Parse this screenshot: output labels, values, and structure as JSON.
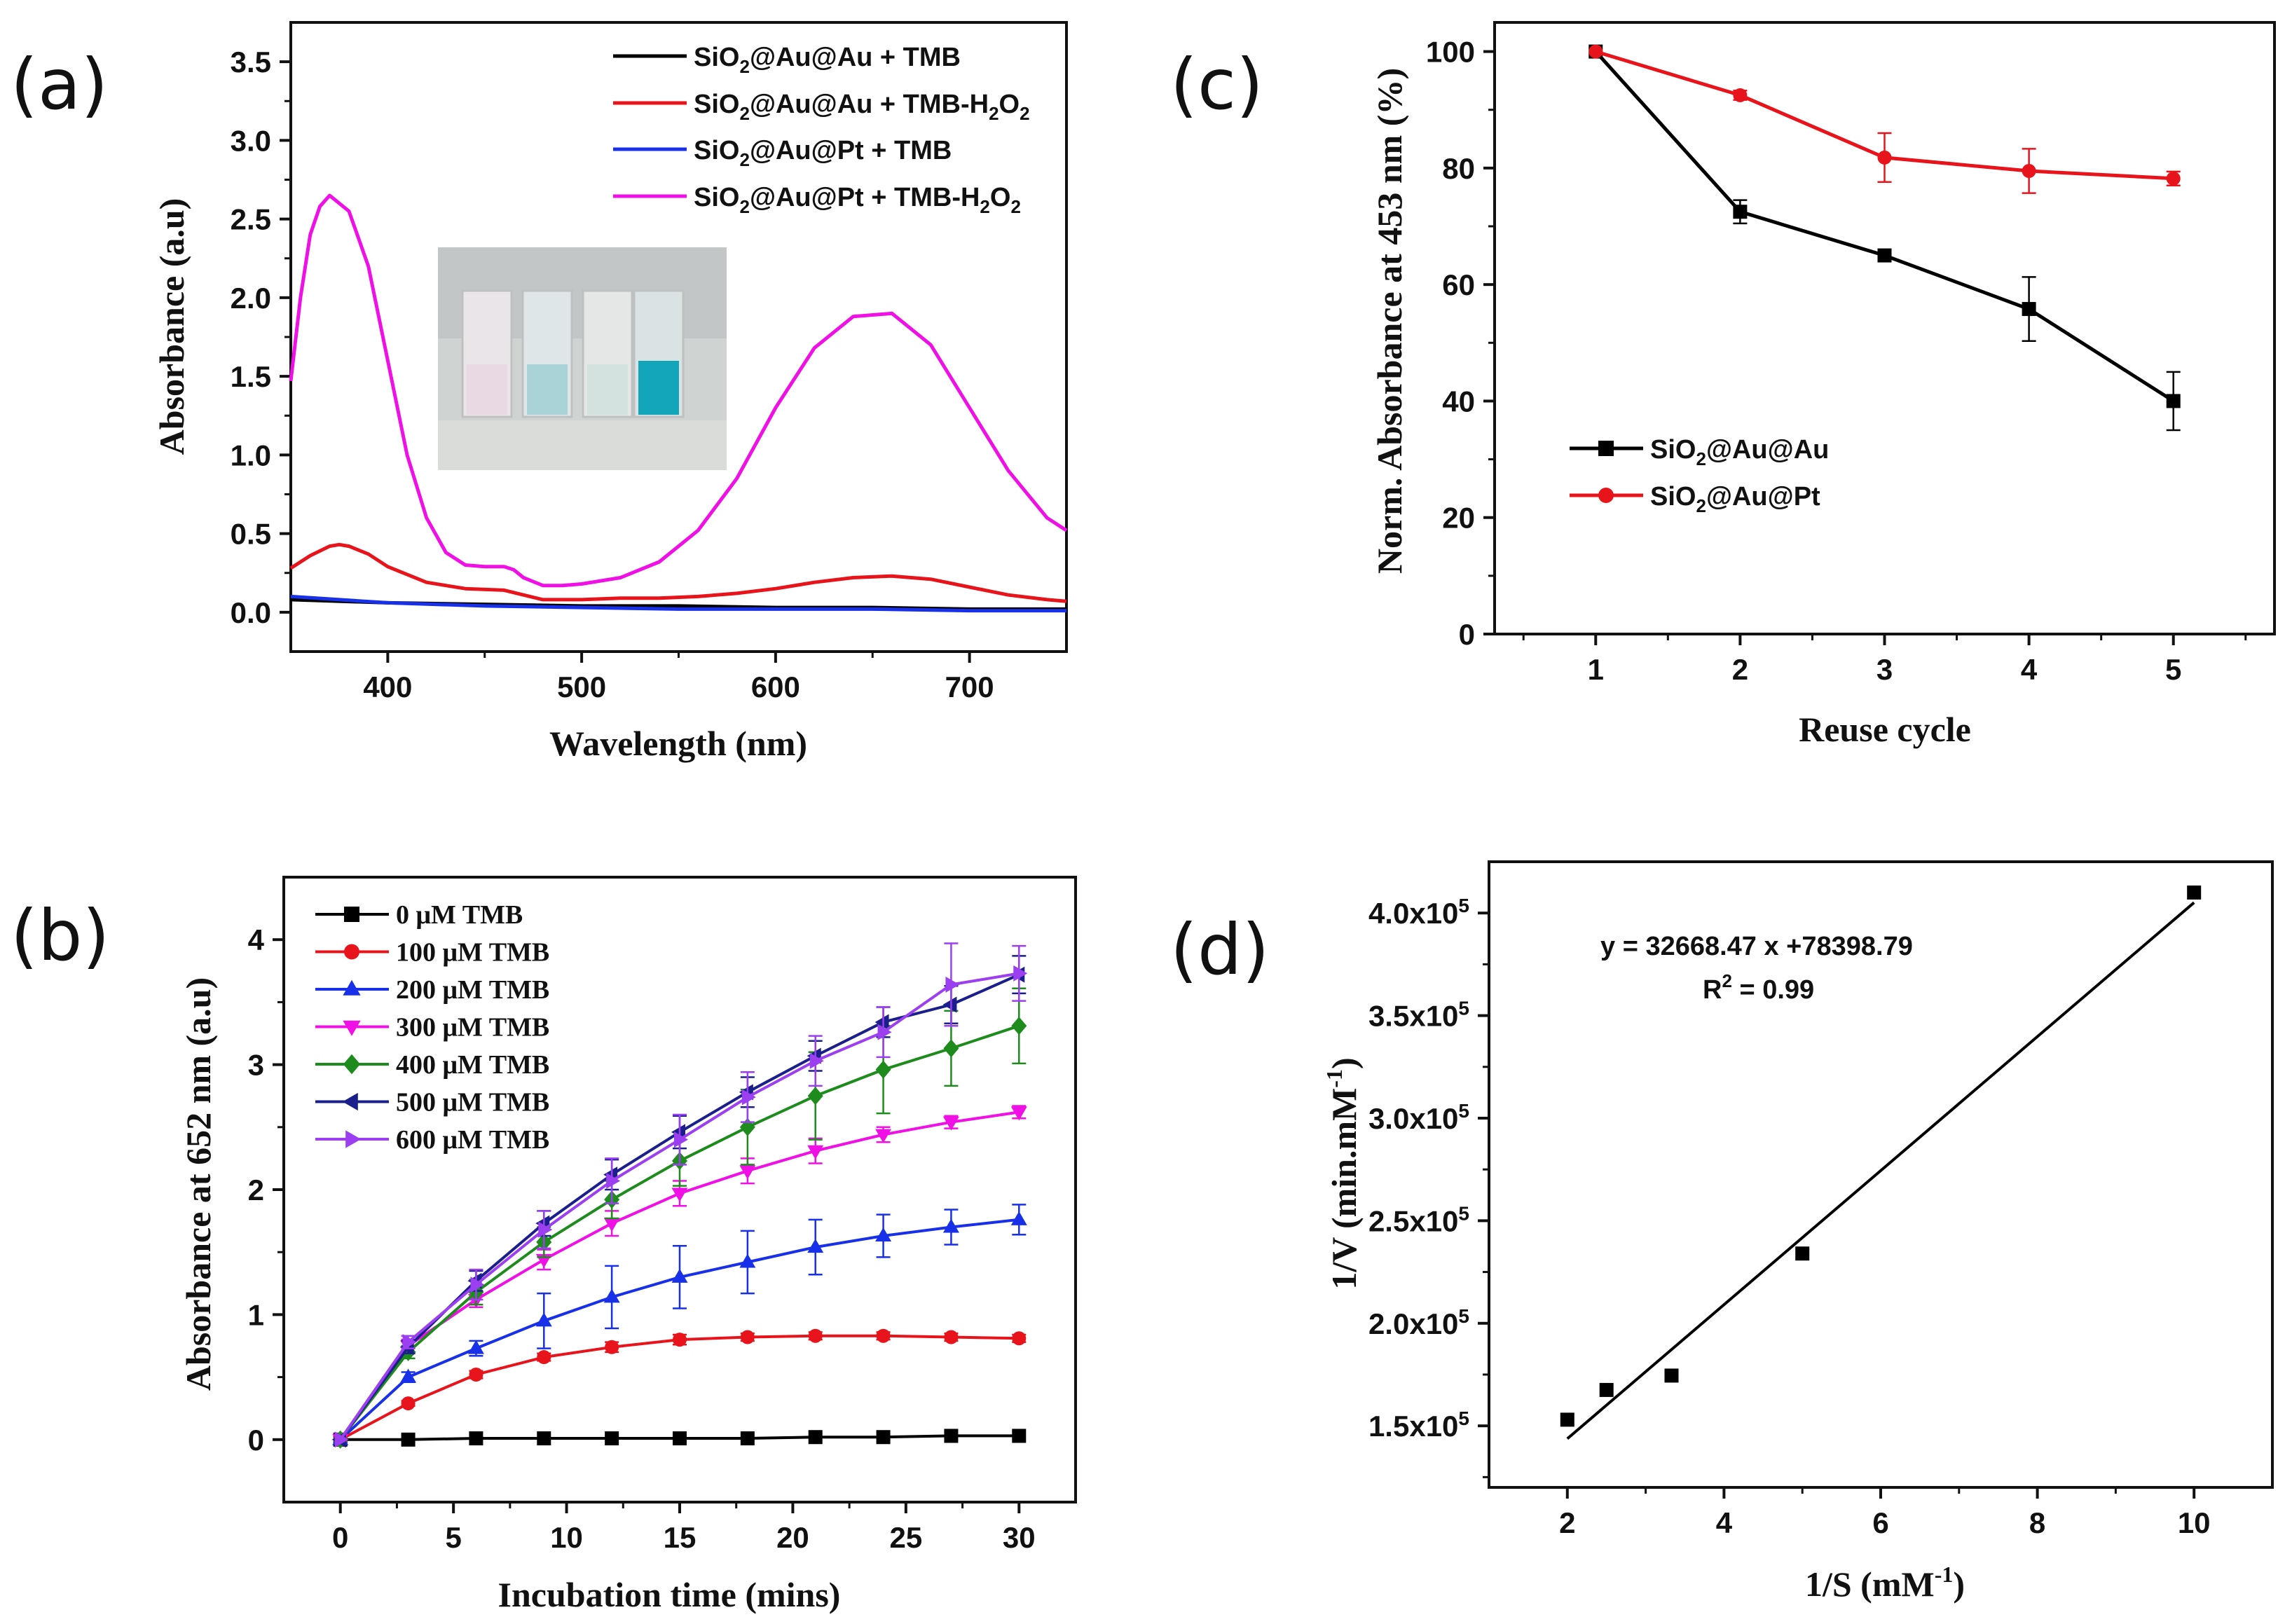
{
  "panels": {
    "a": "(a)",
    "b": "(b)",
    "c": "(c)",
    "d": "(d)"
  },
  "chart_data": [
    {
      "id": "a",
      "type": "line",
      "xlabel": "Wavelength (nm)",
      "ylabel": "Absorbance (a.u)",
      "xlim": [
        350,
        750
      ],
      "ylim": [
        -0.25,
        3.75
      ],
      "xticks": [
        400,
        500,
        600,
        700
      ],
      "yticks": [
        0.0,
        0.5,
        1.0,
        1.5,
        2.0,
        2.5,
        3.0,
        3.5
      ],
      "legend_position": "top-right",
      "inset": "photo of four cuvettes; the fourth is blue",
      "series": [
        {
          "name": "SiO2@Au@Au + TMB",
          "color": "#000000",
          "x": [
            350,
            400,
            450,
            500,
            550,
            600,
            650,
            700,
            750
          ],
          "y": [
            0.08,
            0.06,
            0.05,
            0.04,
            0.04,
            0.03,
            0.03,
            0.02,
            0.02
          ]
        },
        {
          "name": "SiO2@Au@Au + TMB-H2O2",
          "color": "#e8141b",
          "x": [
            350,
            360,
            370,
            375,
            380,
            390,
            400,
            420,
            440,
            460,
            470,
            480,
            500,
            520,
            540,
            560,
            580,
            600,
            620,
            640,
            660,
            680,
            700,
            720,
            740,
            750
          ],
          "y": [
            0.28,
            0.36,
            0.42,
            0.43,
            0.42,
            0.37,
            0.29,
            0.19,
            0.15,
            0.14,
            0.11,
            0.08,
            0.08,
            0.09,
            0.09,
            0.1,
            0.12,
            0.15,
            0.19,
            0.22,
            0.23,
            0.21,
            0.16,
            0.11,
            0.08,
            0.07
          ]
        },
        {
          "name": "SiO2@Au@Pt + TMB",
          "color": "#1730e8",
          "x": [
            350,
            400,
            450,
            500,
            550,
            600,
            650,
            700,
            750
          ],
          "y": [
            0.1,
            0.06,
            0.04,
            0.03,
            0.02,
            0.02,
            0.02,
            0.01,
            0.01
          ]
        },
        {
          "name": "SiO2@Au@Pt + TMB-H2O2",
          "color": "#f010e6",
          "x": [
            350,
            355,
            360,
            365,
            370,
            375,
            380,
            390,
            400,
            410,
            420,
            430,
            440,
            450,
            460,
            465,
            470,
            480,
            490,
            500,
            520,
            540,
            560,
            580,
            600,
            620,
            640,
            660,
            680,
            700,
            720,
            740,
            750
          ],
          "y": [
            1.47,
            2.0,
            2.4,
            2.58,
            2.65,
            2.6,
            2.55,
            2.2,
            1.6,
            1.0,
            0.6,
            0.38,
            0.3,
            0.29,
            0.29,
            0.27,
            0.22,
            0.17,
            0.17,
            0.18,
            0.22,
            0.32,
            0.52,
            0.85,
            1.3,
            1.68,
            1.88,
            1.9,
            1.7,
            1.3,
            0.9,
            0.6,
            0.52
          ]
        }
      ]
    },
    {
      "id": "b",
      "type": "line",
      "xlabel": "Incubation time (mins)",
      "ylabel": "Absorbance at 652 nm (a.u)",
      "xlim": [
        -2.5,
        32.5
      ],
      "ylim": [
        -0.5,
        4.5
      ],
      "xticks": [
        0,
        5,
        10,
        15,
        20,
        25,
        30
      ],
      "yticks": [
        0,
        1,
        2,
        3,
        4
      ],
      "legend_position": "top-left",
      "x": [
        0,
        3,
        6,
        9,
        12,
        15,
        18,
        21,
        24,
        27,
        30
      ],
      "series": [
        {
          "name": "0 μM TMB",
          "color": "#000000",
          "marker": "square",
          "values": [
            0,
            0,
            0.01,
            0.01,
            0.01,
            0.01,
            0.01,
            0.02,
            0.02,
            0.03,
            0.03
          ],
          "errors": [
            0,
            0,
            0,
            0,
            0,
            0,
            0,
            0,
            0,
            0,
            0
          ]
        },
        {
          "name": "100 μM TMB",
          "color": "#e8141b",
          "marker": "circle",
          "values": [
            0,
            0.29,
            0.52,
            0.66,
            0.74,
            0.8,
            0.82,
            0.83,
            0.83,
            0.82,
            0.81
          ],
          "errors": [
            0,
            0.02,
            0.03,
            0.03,
            0.04,
            0.04,
            0.03,
            0.03,
            0.03,
            0.03,
            0.03
          ]
        },
        {
          "name": "200 μM TMB",
          "color": "#1730e8",
          "marker": "triangle-up",
          "values": [
            0,
            0.5,
            0.73,
            0.95,
            1.14,
            1.3,
            1.42,
            1.54,
            1.63,
            1.7,
            1.76
          ],
          "errors": [
            0,
            0.04,
            0.06,
            0.22,
            0.25,
            0.25,
            0.25,
            0.22,
            0.17,
            0.14,
            0.12
          ]
        },
        {
          "name": "300 μM TMB",
          "color": "#f010e6",
          "marker": "triangle-down",
          "values": [
            0,
            0.75,
            1.12,
            1.44,
            1.73,
            1.97,
            2.15,
            2.31,
            2.44,
            2.54,
            2.62
          ],
          "errors": [
            0,
            0.05,
            0.06,
            0.08,
            0.1,
            0.1,
            0.1,
            0.1,
            0.06,
            0.05,
            0.05
          ]
        },
        {
          "name": "400 μM TMB",
          "color": "#1d8c1d",
          "marker": "diamond",
          "values": [
            0,
            0.7,
            1.18,
            1.58,
            1.92,
            2.23,
            2.5,
            2.75,
            2.96,
            3.13,
            3.31
          ],
          "errors": [
            0,
            0.05,
            0.1,
            0.12,
            0.15,
            0.2,
            0.3,
            0.35,
            0.35,
            0.3,
            0.3
          ]
        },
        {
          "name": "500 μM TMB",
          "color": "#1b1f8c",
          "marker": "triangle-left",
          "values": [
            0,
            0.74,
            1.27,
            1.73,
            2.12,
            2.46,
            2.78,
            3.07,
            3.34,
            3.48,
            3.72
          ],
          "errors": [
            0,
            0.05,
            0.08,
            0.1,
            0.12,
            0.13,
            0.12,
            0.12,
            0.12,
            0.15,
            0.15
          ]
        },
        {
          "name": "600 μM TMB",
          "color": "#9b3ff0",
          "marker": "triangle-right",
          "values": [
            0,
            0.78,
            1.24,
            1.68,
            2.07,
            2.4,
            2.74,
            3.03,
            3.26,
            3.64,
            3.73
          ],
          "errors": [
            0,
            0.05,
            0.12,
            0.15,
            0.18,
            0.2,
            0.2,
            0.2,
            0.2,
            0.33,
            0.22
          ]
        }
      ]
    },
    {
      "id": "c",
      "type": "line",
      "xlabel": "Reuse cycle",
      "ylabel": "Norm. Absorbance at 453 nm (%)",
      "xlim": [
        0.3,
        5.7
      ],
      "ylim": [
        0,
        105
      ],
      "xticks": [
        1,
        2,
        3,
        4,
        5
      ],
      "yticks": [
        0,
        20,
        40,
        60,
        80,
        100
      ],
      "legend_position": "bottom-left",
      "x": [
        1,
        2,
        3,
        4,
        5
      ],
      "series": [
        {
          "name": "SiO2@Au@Au",
          "color": "#000000",
          "marker": "square",
          "values": [
            100,
            72.5,
            65,
            55.8,
            40
          ],
          "errors": [
            0,
            2,
            1,
            5.5,
            5
          ]
        },
        {
          "name": "SiO2@Au@Pt",
          "color": "#e8141b",
          "marker": "circle",
          "values": [
            100,
            92.5,
            81.8,
            79.5,
            78.2
          ],
          "errors": [
            0,
            0.8,
            4.2,
            3.8,
            1.2
          ]
        }
      ]
    },
    {
      "id": "d",
      "type": "scatter",
      "xlabel": "1/S (mM-1)",
      "ylabel": "1/V (min.mM-1)",
      "xlim": [
        1,
        11
      ],
      "ylim": [
        120000,
        425000
      ],
      "xticks": [
        2,
        4,
        6,
        8,
        10
      ],
      "yticks": [
        150000,
        200000,
        250000,
        300000,
        350000,
        400000
      ],
      "ytick_labels": [
        "1.5x10",
        "2.0x10",
        "2.5x10",
        "3.0x10",
        "3.5x10",
        "4.0x10"
      ],
      "ytick_exponent": "5",
      "points": {
        "x": [
          2,
          2.5,
          3.33,
          5,
          10
        ],
        "y": [
          153000,
          167500,
          174500,
          234000,
          410000
        ]
      },
      "fit": {
        "slope": 32668.47,
        "intercept": 78398.79,
        "x_range": [
          2,
          10
        ]
      },
      "equation": "y = 32668.47 x +78398.79",
      "r2": "R2 = 0.99"
    }
  ]
}
